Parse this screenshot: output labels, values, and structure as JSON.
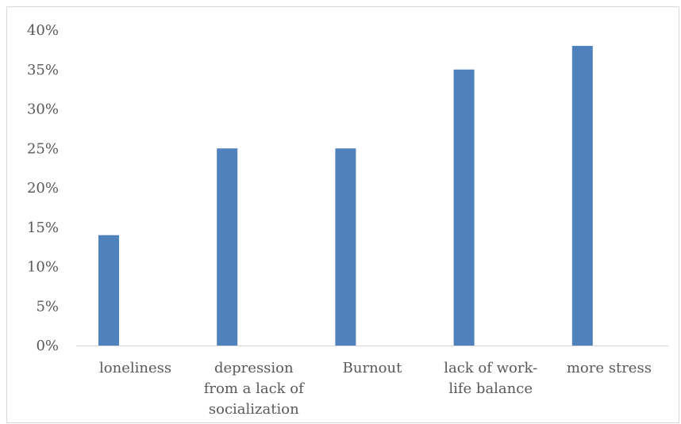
{
  "chart_data": {
    "type": "bar",
    "categories": [
      [
        "loneliness"
      ],
      [
        "depression",
        "from a lack of",
        "socialization"
      ],
      [
        "Burnout"
      ],
      [
        "lack of work-",
        "life balance"
      ],
      [
        "more stress"
      ]
    ],
    "values": [
      14,
      25,
      25,
      35,
      38
    ],
    "ylim": [
      0,
      40
    ],
    "ytick_step": 5,
    "ytick_format": "percent",
    "grid": false,
    "bar_color": "#4f81bd",
    "title": "",
    "xlabel": "",
    "ylabel": ""
  }
}
